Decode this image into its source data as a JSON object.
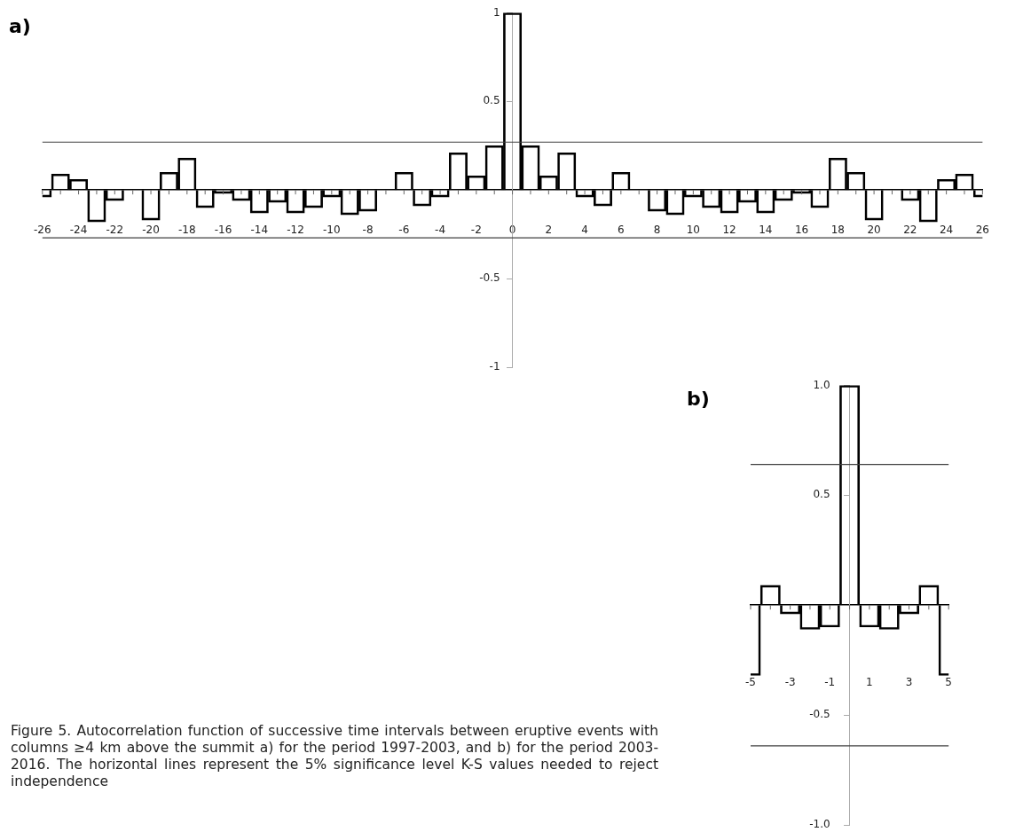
{
  "chart_data": [
    {
      "type": "bar",
      "title": "a)",
      "x": [
        -26,
        -25,
        -24,
        -23,
        -22,
        -21,
        -20,
        -19,
        -18,
        -17,
        -16,
        -15,
        -14,
        -13,
        -12,
        -11,
        -10,
        -9,
        -8,
        -7,
        -6,
        -5,
        -4,
        -3,
        -2,
        -1,
        0,
        1,
        2,
        3,
        4,
        5,
        6,
        7,
        8,
        9,
        10,
        11,
        12,
        13,
        14,
        15,
        16,
        17,
        18,
        19,
        20,
        21,
        22,
        23,
        24,
        25,
        26
      ],
      "series": [
        {
          "color": "#000000",
          "values": [
            -0.04,
            0.09,
            0.06,
            -0.18,
            -0.06,
            0,
            -0.17,
            0.1,
            0.18,
            -0.1,
            -0.02,
            -0.06,
            -0.13,
            -0.07,
            -0.13,
            -0.1,
            -0.04,
            -0.14,
            -0.12,
            0,
            0.1,
            -0.09,
            -0.04,
            0.21,
            0.08,
            0.25,
            1,
            0.25,
            0.08,
            0.21,
            -0.04,
            -0.09,
            0.1,
            0,
            -0.12,
            -0.14,
            -0.04,
            -0.1,
            -0.13,
            -0.07,
            -0.13,
            -0.06,
            -0.02,
            -0.1,
            0.18,
            0.1,
            -0.17,
            0,
            -0.06,
            -0.18,
            0.06,
            0.09,
            -0.04
          ]
        }
      ],
      "xlim": [
        -26,
        26
      ],
      "xticks": [
        -26,
        {
          "value": -25,
          "label": null
        },
        -24,
        {
          "value": -23,
          "label": null
        },
        -22,
        {
          "value": -21,
          "label": null
        },
        -20,
        {
          "value": -19,
          "label": null
        },
        -18,
        {
          "value": -17,
          "label": null
        },
        -16,
        {
          "value": -15,
          "label": null
        },
        -14,
        {
          "value": -13,
          "label": null
        },
        -12,
        {
          "value": -11,
          "label": null
        },
        -10,
        {
          "value": -9,
          "label": null
        },
        -8,
        {
          "value": -7,
          "label": null
        },
        -6,
        {
          "value": -5,
          "label": null
        },
        -4,
        {
          "value": -3,
          "label": null
        },
        -2,
        {
          "value": -1,
          "label": null
        },
        0,
        {
          "value": 1,
          "label": null
        },
        2,
        {
          "value": 3,
          "label": null
        },
        4,
        {
          "value": 5,
          "label": null
        },
        6,
        {
          "value": 7,
          "label": null
        },
        8,
        {
          "value": 9,
          "label": null
        },
        10,
        {
          "value": 11,
          "label": null
        },
        12,
        {
          "value": 13,
          "label": null
        },
        14,
        {
          "value": 15,
          "label": null
        },
        16,
        {
          "value": 17,
          "label": null
        },
        18,
        {
          "value": 19,
          "label": null
        },
        20,
        {
          "value": 21,
          "label": null
        },
        22,
        {
          "value": 23,
          "label": null
        },
        24,
        {
          "value": 25,
          "label": null
        },
        26
      ],
      "ylim": [
        -1,
        1
      ],
      "yticks": [
        -1,
        -0.5,
        0.5,
        1
      ],
      "ref_lines": [
        {
          "axis": "y",
          "value": 0.27,
          "color": "#404040"
        },
        {
          "axis": "y",
          "value": -0.27,
          "color": "#404040"
        }
      ],
      "legend": false,
      "grid": false
    },
    {
      "type": "bar",
      "title": "b)",
      "x": [
        -5,
        -4,
        -3,
        -2,
        -1,
        0,
        1,
        2,
        3,
        4,
        5
      ],
      "series": [
        {
          "color": "#000000",
          "values": [
            -0.32,
            0.09,
            -0.04,
            -0.11,
            -0.1,
            1,
            -0.1,
            -0.11,
            -0.04,
            0.09,
            -0.32
          ]
        }
      ],
      "xlim": [
        -5,
        5
      ],
      "xticks": [
        -5,
        {
          "value": -4,
          "label": null
        },
        -3,
        {
          "value": -2,
          "label": null
        },
        -1,
        {
          "value": 0,
          "label": null
        },
        1,
        {
          "value": 2,
          "label": null
        },
        3,
        {
          "value": 4,
          "label": null
        },
        5
      ],
      "ylim": [
        -1,
        1
      ],
      "yticks": [
        {
          "value": -1,
          "label": "-1.0"
        },
        -0.5,
        0.5,
        {
          "value": 1,
          "label": "1.0"
        }
      ],
      "ref_lines": [
        {
          "axis": "y",
          "value": 0.64,
          "color": "#404040"
        },
        {
          "axis": "y",
          "value": -0.64,
          "color": "#404040"
        }
      ],
      "annotations": [
        "Figure 5. Autocorrelation function of successive time intervals between eruptive events with columns ≥4 km above the summit a) for the period 1997-2003, and b) for the period 2003-2016. The horizontal lines represent the 5% significance level K-S values needed to reject independence"
      ],
      "legend": false,
      "grid": false
    }
  ]
}
